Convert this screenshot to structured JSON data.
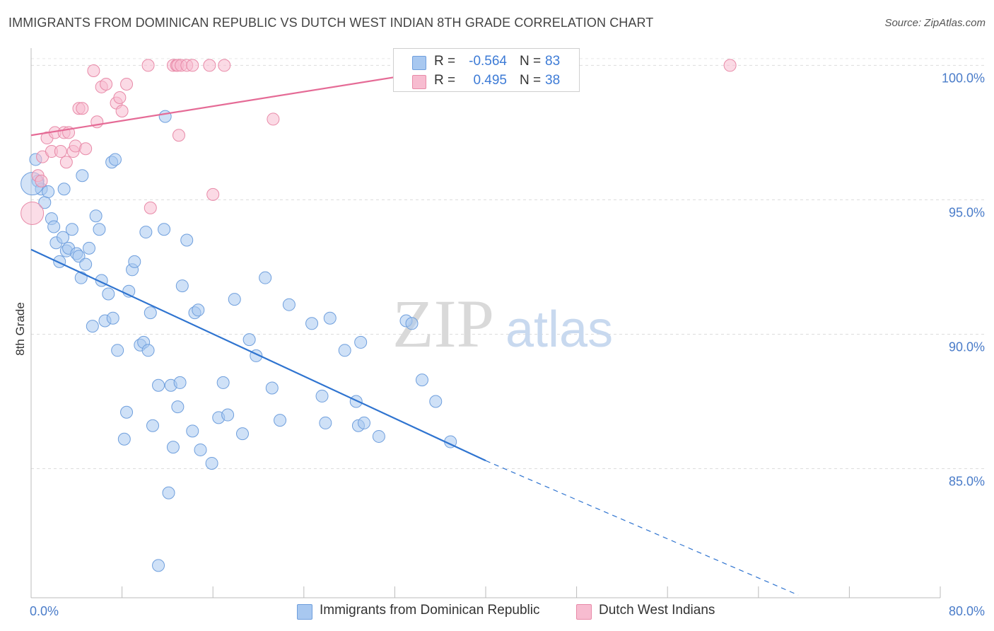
{
  "title": "IMMIGRANTS FROM DOMINICAN REPUBLIC VS DUTCH WEST INDIAN 8TH GRADE CORRELATION CHART",
  "source": "Source: ZipAtlas.com",
  "watermark": {
    "zip": "ZIP",
    "atlas": "atlas"
  },
  "legend": {
    "rows": [
      {
        "r_label": "R =",
        "r_value": "-0.564",
        "n_label": "N =",
        "n_value": "83",
        "color": "#a8c8f0",
        "edge": "#6f9fdd"
      },
      {
        "r_label": "R =",
        "r_value": "0.495",
        "n_label": "N =",
        "n_value": "38",
        "color": "#f7bcd0",
        "edge": "#e88aa8"
      }
    ]
  },
  "bottom_legend": {
    "items": [
      {
        "label": "Immigrants from Dominican Republic",
        "color": "#a8c8f0",
        "edge": "#6f9fdd"
      },
      {
        "label": "Dutch West Indians",
        "color": "#f7bcd0",
        "edge": "#e88aa8"
      }
    ]
  },
  "chart_data": {
    "type": "scatter",
    "title": "IMMIGRANTS FROM DOMINICAN REPUBLIC VS DUTCH WEST INDIAN 8TH GRADE CORRELATION CHART",
    "xlabel": "",
    "ylabel": "8th Grade",
    "xlim": [
      0,
      80
    ],
    "ylim": [
      80.2,
      100.8
    ],
    "x_tick_labels": [
      {
        "value": 0,
        "label": "0.0%"
      },
      {
        "value": 80,
        "label": "80.0%"
      }
    ],
    "y_tick_labels": [
      {
        "value": 100,
        "label": "100.0%"
      },
      {
        "value": 95,
        "label": "95.0%"
      },
      {
        "value": 90,
        "label": "90.0%"
      },
      {
        "value": 85,
        "label": "85.0%"
      }
    ],
    "grid": true,
    "series": [
      {
        "name": "Immigrants from Dominican Republic",
        "color": "#a8c8f0",
        "edge": "#6f9fdd",
        "line_color": "#2f74d0",
        "trend": {
          "x0": 0,
          "y0": 93.15,
          "x1": 40,
          "y1": 85.3,
          "dash_to_x": 67.5,
          "dash_to_y": 80.3
        },
        "points": [
          [
            0.4,
            96.5
          ],
          [
            0.6,
            95.7
          ],
          [
            0.9,
            95.4
          ],
          [
            1.2,
            94.9
          ],
          [
            1.5,
            95.3
          ],
          [
            1.8,
            94.3
          ],
          [
            2.0,
            94.0
          ],
          [
            2.2,
            93.4
          ],
          [
            2.5,
            92.7
          ],
          [
            2.8,
            93.6
          ],
          [
            3.1,
            93.1
          ],
          [
            3.3,
            93.2
          ],
          [
            3.6,
            93.9
          ],
          [
            4.0,
            93.0
          ],
          [
            4.2,
            92.9
          ],
          [
            4.4,
            92.1
          ],
          [
            4.8,
            92.6
          ],
          [
            5.1,
            93.2
          ],
          [
            5.4,
            90.3
          ],
          [
            5.7,
            94.4
          ],
          [
            6.0,
            93.9
          ],
          [
            6.2,
            92.0
          ],
          [
            6.5,
            90.5
          ],
          [
            6.8,
            91.5
          ],
          [
            7.2,
            90.6
          ],
          [
            7.6,
            89.4
          ],
          [
            8.2,
            86.1
          ],
          [
            8.4,
            87.1
          ],
          [
            8.6,
            91.6
          ],
          [
            8.9,
            92.4
          ],
          [
            9.1,
            92.7
          ],
          [
            9.6,
            89.6
          ],
          [
            9.9,
            89.7
          ],
          [
            10.1,
            93.8
          ],
          [
            10.3,
            89.4
          ],
          [
            10.5,
            90.8
          ],
          [
            10.7,
            86.6
          ],
          [
            11.2,
            88.1
          ],
          [
            11.7,
            93.9
          ],
          [
            12.1,
            84.1
          ],
          [
            12.3,
            88.1
          ],
          [
            12.5,
            85.8
          ],
          [
            12.9,
            87.3
          ],
          [
            13.1,
            88.2
          ],
          [
            13.3,
            91.8
          ],
          [
            13.7,
            93.5
          ],
          [
            14.2,
            86.4
          ],
          [
            14.4,
            90.8
          ],
          [
            14.7,
            90.9
          ],
          [
            14.9,
            85.7
          ],
          [
            15.9,
            85.2
          ],
          [
            16.5,
            86.9
          ],
          [
            16.9,
            88.2
          ],
          [
            17.3,
            87.0
          ],
          [
            17.9,
            91.3
          ],
          [
            18.6,
            86.3
          ],
          [
            19.2,
            89.8
          ],
          [
            19.8,
            89.2
          ],
          [
            20.6,
            92.1
          ],
          [
            21.2,
            88.0
          ],
          [
            21.9,
            86.8
          ],
          [
            22.7,
            91.1
          ],
          [
            24.7,
            90.4
          ],
          [
            25.6,
            87.7
          ],
          [
            25.9,
            86.7
          ],
          [
            26.3,
            90.6
          ],
          [
            27.6,
            89.4
          ],
          [
            28.6,
            87.5
          ],
          [
            28.8,
            86.6
          ],
          [
            29.0,
            89.7
          ],
          [
            29.3,
            86.7
          ],
          [
            30.6,
            86.2
          ],
          [
            33.0,
            90.5
          ],
          [
            33.5,
            90.4
          ],
          [
            34.4,
            88.3
          ],
          [
            35.6,
            87.5
          ],
          [
            36.9,
            86.0
          ],
          [
            11.2,
            81.4
          ],
          [
            7.1,
            96.4
          ],
          [
            7.4,
            96.5
          ],
          [
            4.5,
            95.9
          ],
          [
            11.8,
            98.1
          ],
          [
            2.9,
            95.4
          ]
        ],
        "large_points": [
          [
            0.1,
            95.6
          ]
        ]
      },
      {
        "name": "Dutch West Indians",
        "color": "#f7bcd0",
        "edge": "#e88aa8",
        "line_color": "#e56b96",
        "trend": {
          "x0": 0,
          "y0": 97.4,
          "x1": 38.5,
          "y1": 100.0
        },
        "points": [
          [
            0.6,
            95.9
          ],
          [
            1.0,
            96.6
          ],
          [
            1.4,
            97.3
          ],
          [
            1.8,
            96.8
          ],
          [
            2.1,
            97.5
          ],
          [
            2.6,
            96.8
          ],
          [
            2.9,
            97.5
          ],
          [
            3.1,
            96.4
          ],
          [
            3.3,
            97.5
          ],
          [
            3.7,
            96.8
          ],
          [
            3.9,
            97.0
          ],
          [
            4.2,
            98.4
          ],
          [
            4.5,
            98.4
          ],
          [
            4.8,
            96.9
          ],
          [
            5.5,
            99.8
          ],
          [
            5.8,
            97.9
          ],
          [
            6.2,
            99.2
          ],
          [
            6.6,
            99.3
          ],
          [
            7.5,
            98.6
          ],
          [
            7.8,
            98.8
          ],
          [
            8.0,
            98.3
          ],
          [
            8.4,
            99.3
          ],
          [
            10.5,
            94.7
          ],
          [
            10.3,
            100.0
          ],
          [
            12.5,
            100.0
          ],
          [
            12.8,
            100.0
          ],
          [
            12.9,
            100.0
          ],
          [
            13.0,
            97.4
          ],
          [
            13.2,
            100.0
          ],
          [
            13.7,
            100.0
          ],
          [
            14.2,
            100.0
          ],
          [
            15.7,
            100.0
          ],
          [
            16.0,
            95.2
          ],
          [
            17.0,
            100.0
          ],
          [
            21.3,
            98.0
          ],
          [
            61.5,
            100.0
          ],
          [
            0.9,
            95.7
          ]
        ],
        "large_points": [
          [
            0.1,
            94.5
          ]
        ]
      }
    ]
  }
}
